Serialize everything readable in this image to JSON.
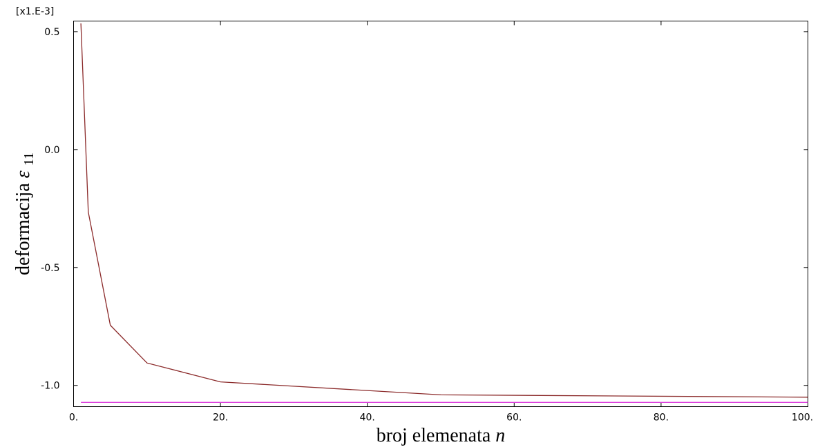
{
  "chart_data": {
    "type": "line",
    "multiplier_label": "[x1.E-3]",
    "xlabel": {
      "text": "broj elemenata ",
      "italic": "n"
    },
    "ylabel": {
      "text": "deformacija ",
      "symbol": "ε",
      "subscript": "11"
    },
    "xlim": [
      0,
      100
    ],
    "ylim": [
      -1.09,
      0.545
    ],
    "x_ticks": [
      {
        "value": 0,
        "label": "0."
      },
      {
        "value": 20,
        "label": "20."
      },
      {
        "value": 40,
        "label": "40."
      },
      {
        "value": 60,
        "label": "60."
      },
      {
        "value": 80,
        "label": "80."
      },
      {
        "value": 100,
        "label": "100."
      }
    ],
    "y_ticks": [
      {
        "value": 0.5,
        "label": "0.5"
      },
      {
        "value": 0.0,
        "label": "0.0"
      },
      {
        "value": -0.5,
        "label": "-0.5"
      },
      {
        "value": -1.0,
        "label": "-1.0"
      }
    ],
    "grid": false,
    "series": [
      {
        "color": "#8b2a2a",
        "x": [
          1,
          2,
          5,
          10,
          20,
          50,
          100
        ],
        "y": [
          0.535,
          -0.265,
          -0.745,
          -0.905,
          -0.985,
          -1.04,
          -1.05
        ]
      },
      {
        "color": "#dd44dd",
        "x": [
          1,
          100
        ],
        "y": [
          -1.072,
          -1.072
        ]
      }
    ]
  }
}
